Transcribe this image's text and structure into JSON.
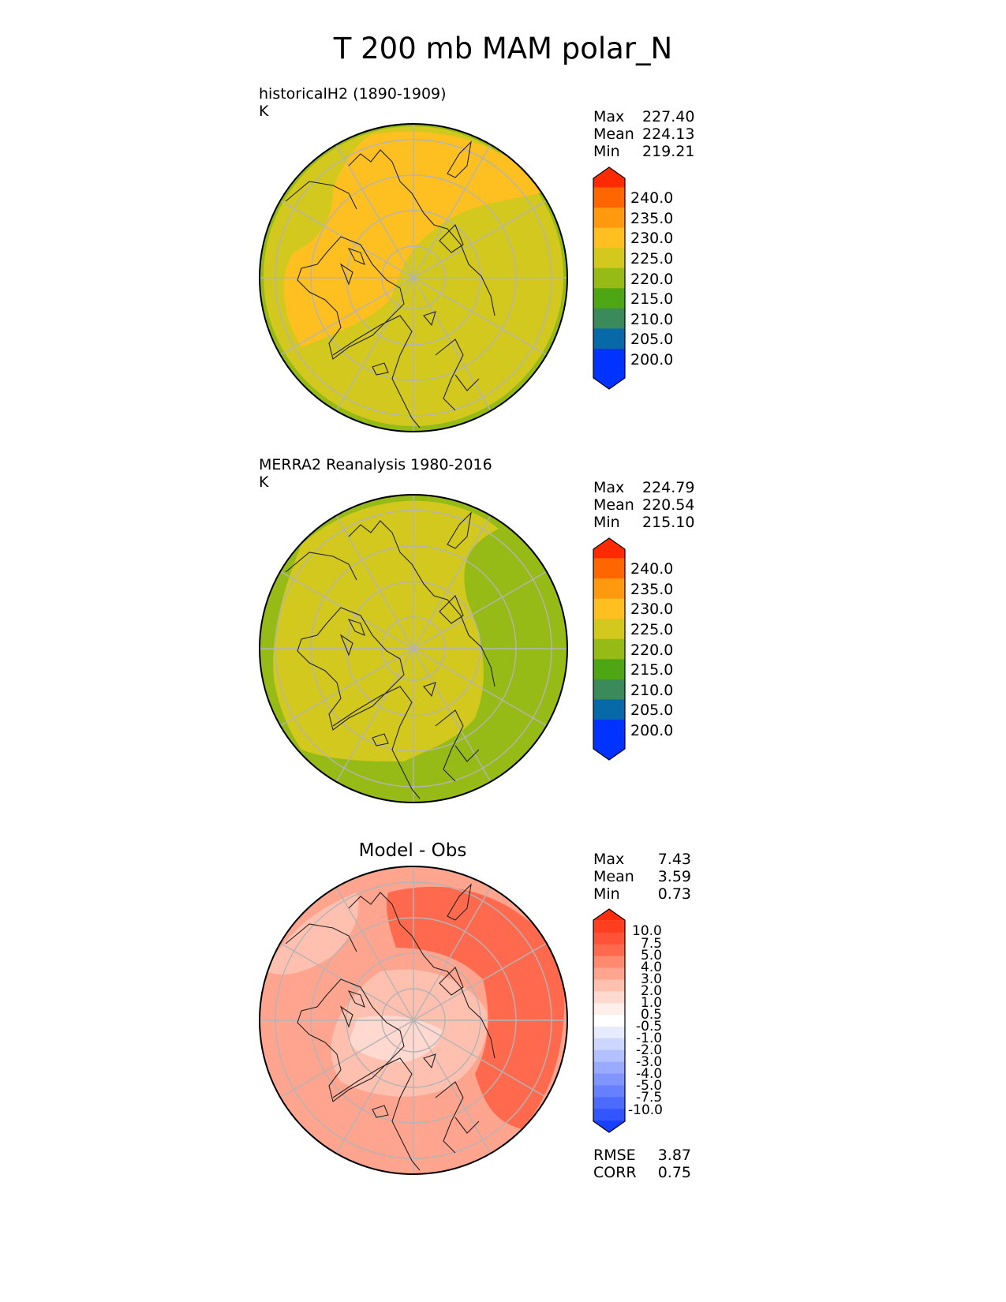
{
  "figure": {
    "title": "T 200 mb MAM polar_N"
  },
  "panels": [
    {
      "title_line1": "historicalH2 (1890-1909)",
      "title_line2": "K",
      "stats": [
        {
          "label": "Max",
          "value": "227.40"
        },
        {
          "label": "Mean",
          "value": "224.13"
        },
        {
          "label": "Min",
          "value": "219.21"
        }
      ]
    },
    {
      "title_line1": "MERRA2 Reanalysis 1980-2016",
      "title_line2": "K",
      "stats": [
        {
          "label": "Max",
          "value": "224.79"
        },
        {
          "label": "Mean",
          "value": "220.54"
        },
        {
          "label": "Min",
          "value": "215.10"
        }
      ]
    },
    {
      "center_title": "Model - Obs",
      "stats": [
        {
          "label": "Max",
          "value": "7.43"
        },
        {
          "label": "Mean",
          "value": "3.59"
        },
        {
          "label": "Min",
          "value": "0.73"
        }
      ],
      "metrics": [
        {
          "label": "RMSE",
          "value": "3.87"
        },
        {
          "label": "CORR",
          "value": "0.75"
        }
      ]
    }
  ],
  "colorbars": {
    "field": {
      "labels": [
        "240.0",
        "235.0",
        "230.0",
        "225.0",
        "220.0",
        "215.0",
        "210.0",
        "205.0",
        "200.0"
      ],
      "colors_top_to_bottom": [
        "#ff2a00",
        "#ff6600",
        "#ff9a10",
        "#fdc020",
        "#d2c81e",
        "#96bb17",
        "#4ea614",
        "#3a8a5c",
        "#0869a8",
        "#0033ff",
        "#0033ff"
      ]
    },
    "diff": {
      "labels": [
        "10.0",
        "7.5",
        "5.0",
        "4.0",
        "3.0",
        "2.0",
        "1.0",
        "0.5",
        "-0.5",
        "-1.0",
        "-2.0",
        "-3.0",
        "-4.0",
        "-5.0",
        "-7.5",
        "-10.0"
      ],
      "colors_top_to_bottom": [
        "#ff2d0e",
        "#ff3d1f",
        "#ff5236",
        "#ff6a4f",
        "#ff8a70",
        "#ffa48e",
        "#ffc0b0",
        "#ffd8d0",
        "#ffeeea",
        "#ffffff",
        "#e6ebff",
        "#cdd6ff",
        "#b3c0ff",
        "#9aabff",
        "#8095ff",
        "#6680ff",
        "#4d6aff",
        "#3355ff",
        "#1a40ff"
      ]
    }
  },
  "map_colors": {
    "historical_base": "#d2c81e",
    "historical_warm": "#fdc020",
    "historical_edge": "#96bb17",
    "merra_base": "#d2c81e",
    "merra_cool": "#96bb17",
    "diff_base": "#ffa48e",
    "diff_warm": "#ff6a4f",
    "diff_light": "#ffc0b0",
    "diff_lightest": "#ffd8d0",
    "grid": "#b4b4b4",
    "coast": "#222222"
  }
}
